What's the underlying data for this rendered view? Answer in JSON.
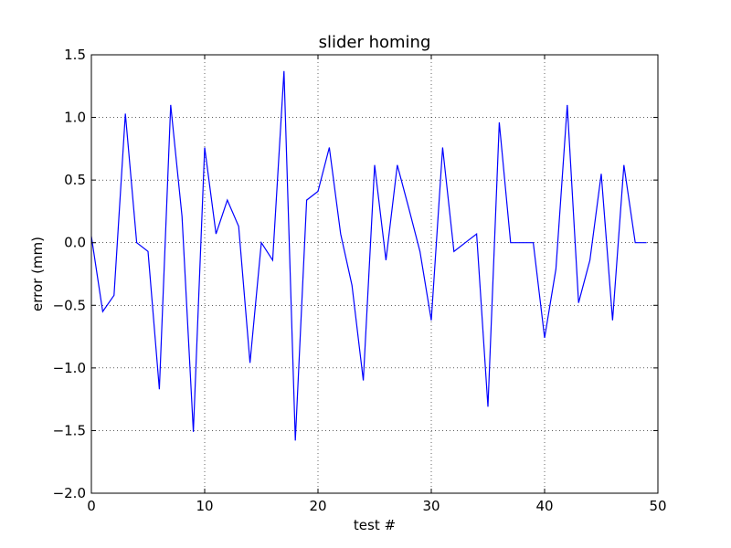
{
  "chart_data": {
    "type": "line",
    "title": "slider homing",
    "xlabel": "test #",
    "ylabel": "error (mm)",
    "xlim": [
      0,
      50
    ],
    "ylim": [
      -2.0,
      1.5
    ],
    "grid": true,
    "grid_style": "dotted",
    "x_ticks": [
      0,
      10,
      20,
      30,
      40,
      50
    ],
    "x_tick_labels": [
      "0",
      "10",
      "20",
      "30",
      "40",
      "50"
    ],
    "y_ticks": [
      1.5,
      1.0,
      0.5,
      0.0,
      -0.5,
      -1.0,
      -1.5,
      -2.0
    ],
    "y_tick_labels": [
      "1.5",
      "1.0",
      "0.5",
      "0.0",
      "−0.5",
      "−1.0",
      "−1.5",
      "−2.0"
    ],
    "series": [
      {
        "color": "#0000ff",
        "x": [
          0,
          1,
          2,
          3,
          4,
          5,
          6,
          7,
          8,
          9,
          10,
          11,
          12,
          13,
          14,
          15,
          16,
          17,
          18,
          19,
          20,
          21,
          22,
          23,
          24,
          25,
          26,
          27,
          28,
          29,
          30,
          31,
          32,
          33,
          34,
          35,
          36,
          37,
          38,
          39,
          40,
          41,
          42,
          43,
          44,
          45,
          46,
          47,
          48,
          49
        ],
        "values": [
          0.05,
          -0.55,
          -0.42,
          1.03,
          0.0,
          -0.07,
          -1.17,
          1.1,
          0.21,
          -1.51,
          0.76,
          0.07,
          0.34,
          0.13,
          -0.96,
          0.0,
          -0.14,
          1.37,
          -1.58,
          0.34,
          0.41,
          0.76,
          0.07,
          -0.34,
          -1.1,
          0.62,
          -0.14,
          0.62,
          0.28,
          -0.07,
          -0.62,
          0.76,
          -0.07,
          0.0,
          0.07,
          -1.31,
          0.96,
          0.0,
          0.0,
          0.0,
          -0.76,
          -0.21,
          1.1,
          -0.48,
          -0.14,
          0.55,
          -0.62,
          0.62,
          0.0,
          0.0
        ]
      }
    ]
  }
}
